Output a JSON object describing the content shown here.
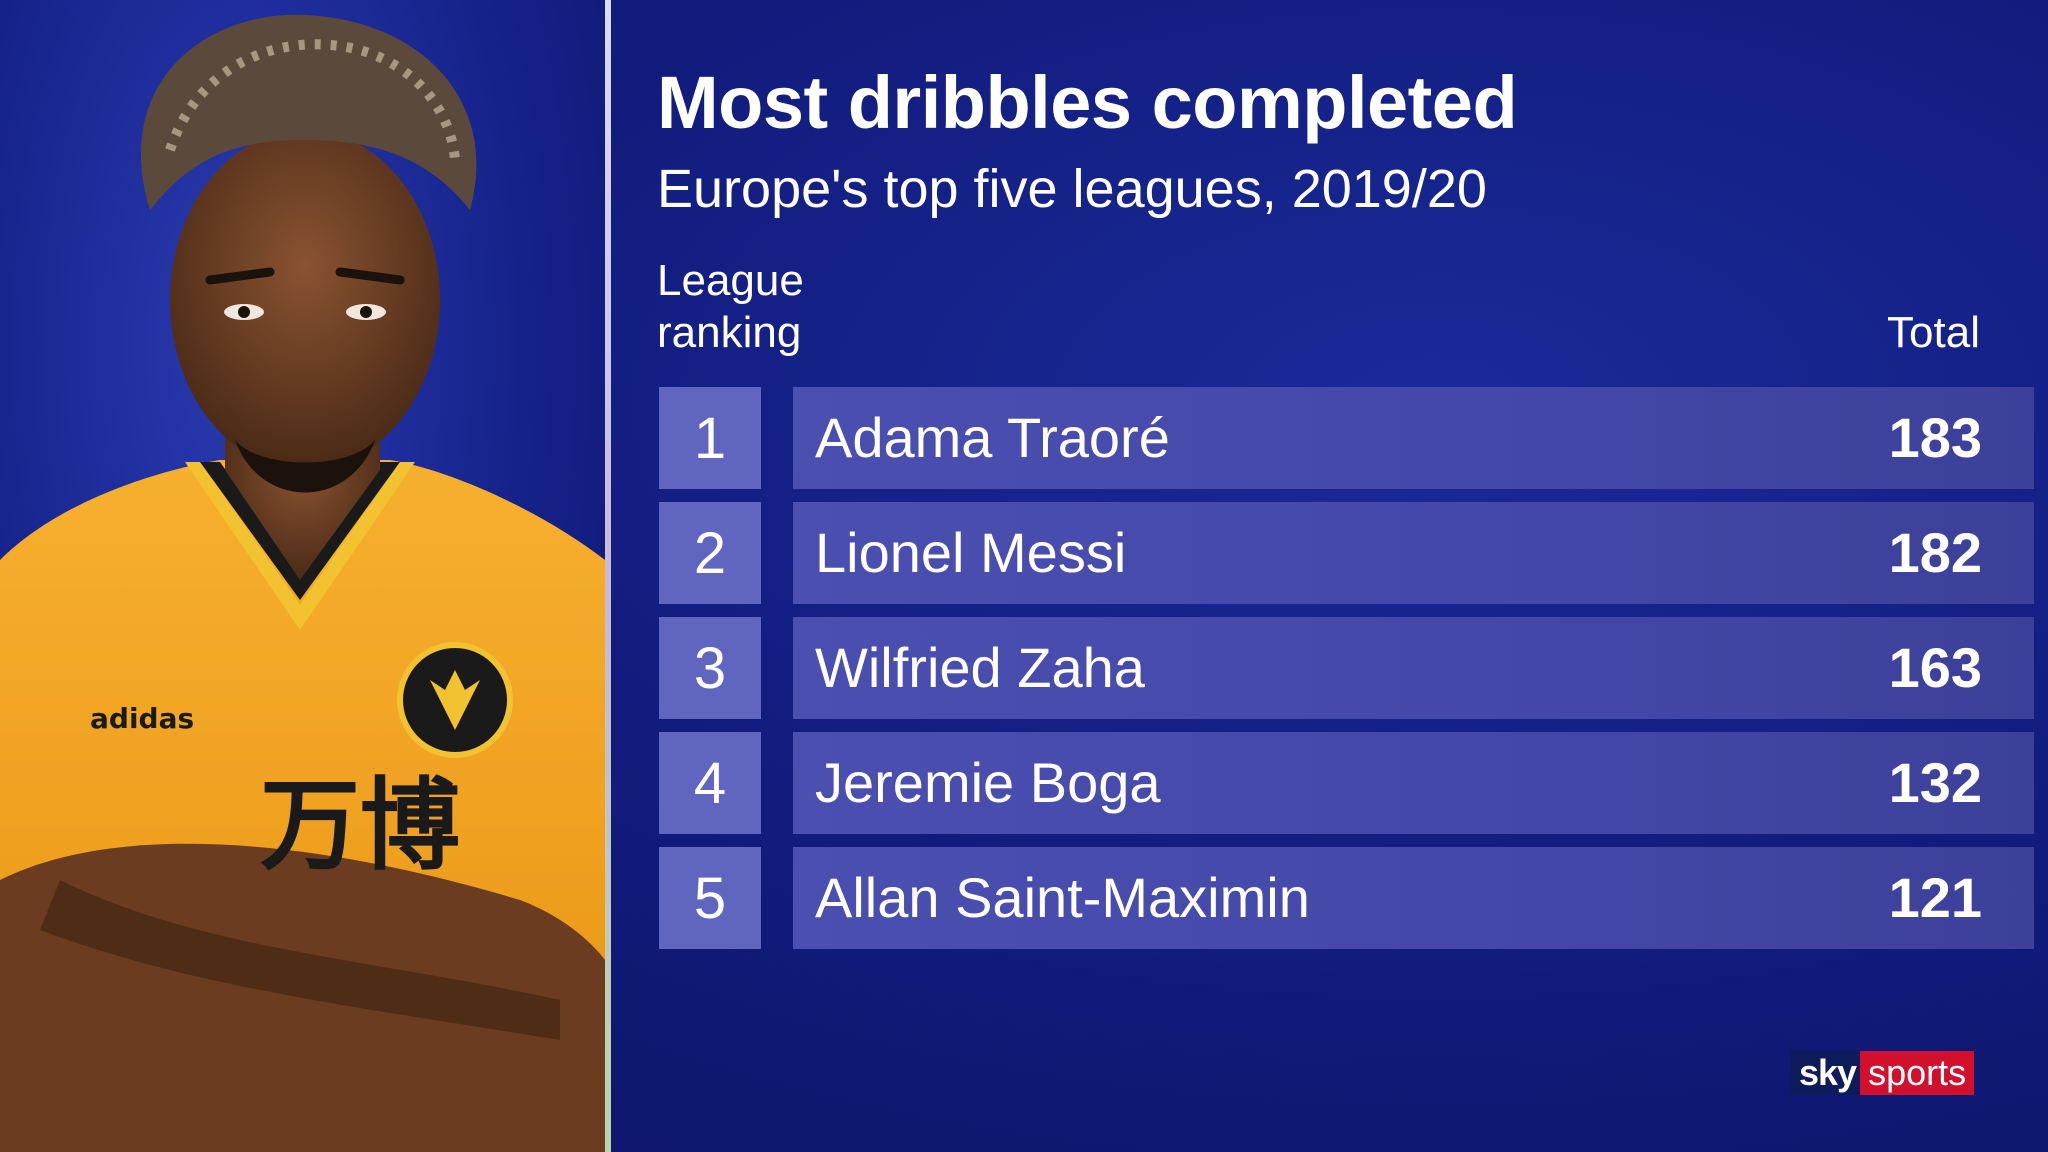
{
  "title": "Most dribbles completed",
  "subtitle": "Europe's top five leagues, 2019/20",
  "columns": {
    "rank_label": "League\nranking",
    "total_label": "Total"
  },
  "rows": [
    {
      "rank": "1",
      "name": "Adama Traoré",
      "total": "183"
    },
    {
      "rank": "2",
      "name": "Lionel Messi",
      "total": "182"
    },
    {
      "rank": "3",
      "name": "Wilfried Zaha",
      "total": "163"
    },
    {
      "rank": "4",
      "name": "Jeremie Boga",
      "total": "132"
    },
    {
      "rank": "5",
      "name": "Allan Saint-Maximin",
      "total": "121"
    }
  ],
  "photo": {
    "kit_badge_text": "adidas",
    "sponsor_text": "万博"
  },
  "logo": {
    "sky": "sky",
    "sports": "sports"
  },
  "colors": {
    "background": "#121d7f",
    "rank_box": "#6066bf",
    "name_bar": "#4a4fb0",
    "kit": "#f5a623",
    "logo_red": "#d2102e"
  }
}
